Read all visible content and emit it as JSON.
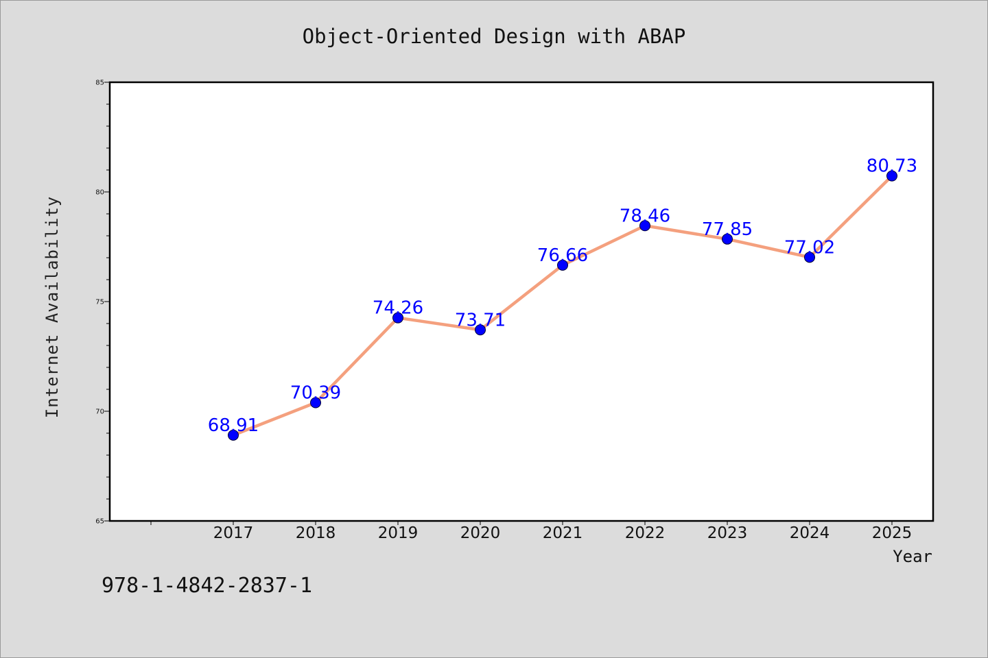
{
  "chart_data": {
    "type": "line",
    "title": "Object-Oriented Design with ABAP",
    "xlabel": "Year",
    "ylabel": "Internet Availability",
    "categories": [
      "2017",
      "2018",
      "2019",
      "2020",
      "2021",
      "2022",
      "2023",
      "2024",
      "2025"
    ],
    "values": [
      68.91,
      70.39,
      74.26,
      73.71,
      76.66,
      78.46,
      77.85,
      77.02,
      80.73
    ],
    "value_labels": [
      "68.91",
      "70.39",
      "74.26",
      "73.71",
      "76.66",
      "78.46",
      "77.85",
      "77.02",
      "80.73"
    ],
    "ylim": [
      65,
      85
    ],
    "yticks": [
      "65",
      "70",
      "75",
      "80",
      "85"
    ],
    "grid": false,
    "line_color": "#f4a07e",
    "marker_color": "#0000ff",
    "label_color": "#0000ff"
  },
  "footer": {
    "isbn": "978-1-4842-2837-1"
  }
}
